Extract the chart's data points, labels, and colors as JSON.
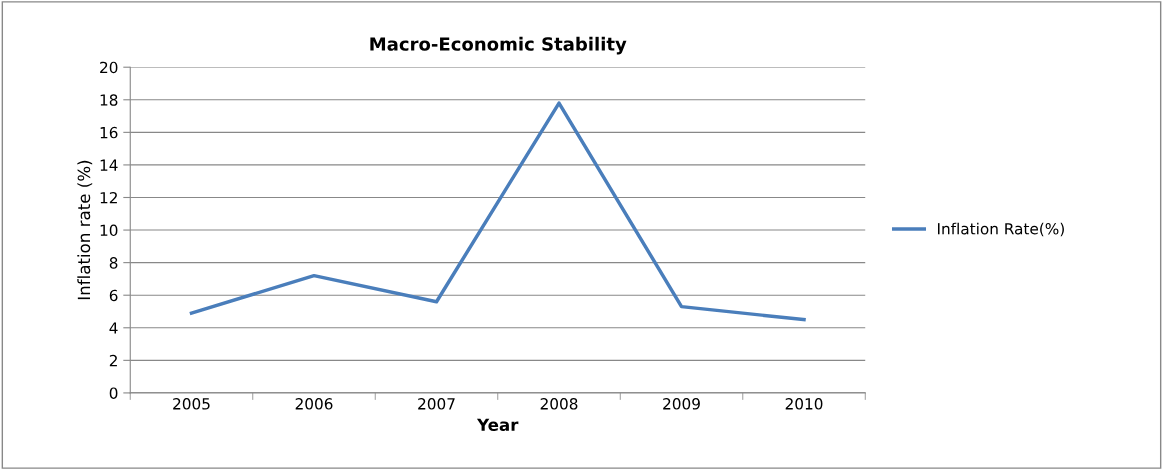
{
  "chart_data": {
    "type": "line",
    "title": "Macro-Economic Stability",
    "xlabel": "Year",
    "ylabel": "Inflation rate (%)",
    "categories": [
      "2005",
      "2006",
      "2007",
      "2008",
      "2009",
      "2010"
    ],
    "series": [
      {
        "name": "Inflation Rate(%)",
        "color": "#4a7ebb",
        "values": [
          4.9,
          7.2,
          5.6,
          17.8,
          5.3,
          4.5
        ]
      }
    ],
    "ylim": [
      0,
      20
    ],
    "yticks": [
      0,
      2,
      4,
      6,
      8,
      10,
      12,
      14,
      16,
      18,
      20
    ],
    "grid": "y",
    "legend": "right",
    "marker": "none",
    "line_style": "solid"
  }
}
